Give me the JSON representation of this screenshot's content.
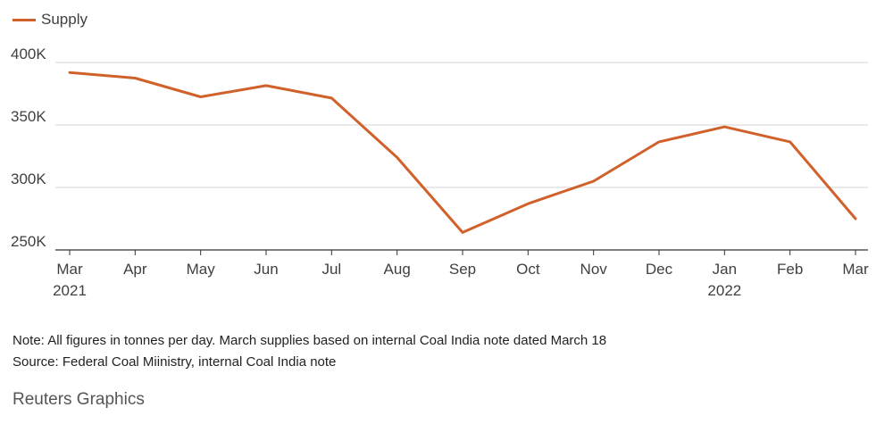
{
  "chart_data": {
    "type": "line",
    "categories": [
      "Mar",
      "Apr",
      "May",
      "Jun",
      "Jul",
      "Aug",
      "Sep",
      "Oct",
      "Nov",
      "Dec",
      "Jan",
      "Feb",
      "Mar"
    ],
    "year_labels": {
      "0": "2021",
      "10": "2022"
    },
    "series": [
      {
        "name": "Supply",
        "values": [
          392000,
          387500,
          372500,
          381500,
          371500,
          324000,
          264000,
          287000,
          305000,
          336500,
          348500,
          336500,
          275000
        ]
      }
    ],
    "y_ticks": [
      250000,
      300000,
      350000,
      400000
    ],
    "y_tick_labels": [
      "250K",
      "300K",
      "350K",
      "400K"
    ],
    "ylim": [
      250000,
      400000
    ],
    "grid": true,
    "legend_position": "top-left",
    "colors": {
      "series": "#d1612a",
      "grid": "#d6d6d6",
      "axis": "#333333"
    }
  },
  "legend": {
    "label": "Supply"
  },
  "notes": {
    "line1": "Note: All figures in tonnes per day. March supplies based on internal Coal India note dated March 18",
    "line2": "Source: Federal Coal Miinistry, internal Coal India note"
  },
  "credit": "Reuters Graphics"
}
